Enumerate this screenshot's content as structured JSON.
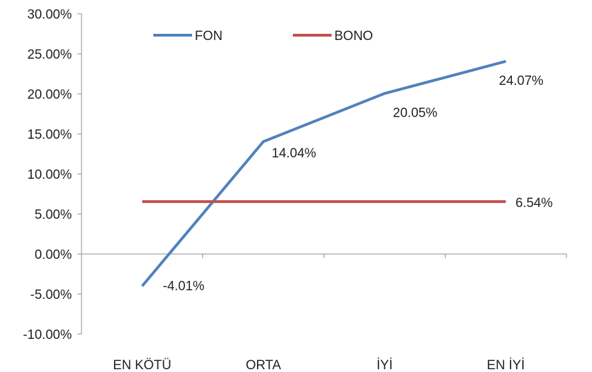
{
  "chart_data": {
    "type": "line",
    "categories": [
      "EN KÖTÜ",
      "ORTA",
      "İYİ",
      "EN İYİ"
    ],
    "series": [
      {
        "name": "FON",
        "values": [
          -4.01,
          14.04,
          20.05,
          24.07
        ],
        "color": "#4F81BD",
        "data_labels": [
          "-4.01%",
          "14.04%",
          "20.05%",
          "24.07%"
        ]
      },
      {
        "name": "BONO",
        "values": [
          6.54,
          6.54,
          6.54,
          6.54
        ],
        "color": "#C0504D",
        "data_labels": [
          "",
          "",
          "",
          "6.54%"
        ]
      }
    ],
    "ylim": [
      -10,
      30
    ],
    "yticks": [
      -10,
      -5,
      0,
      5,
      10,
      15,
      20,
      25,
      30
    ],
    "ytick_labels": [
      "-10.00%",
      "-5.00%",
      "0.00%",
      "5.00%",
      "10.00%",
      "15.00%",
      "20.00%",
      "25.00%",
      "30.00%"
    ],
    "title": "",
    "xlabel": "",
    "ylabel": "",
    "grid": false,
    "legend_position": "top-left"
  }
}
